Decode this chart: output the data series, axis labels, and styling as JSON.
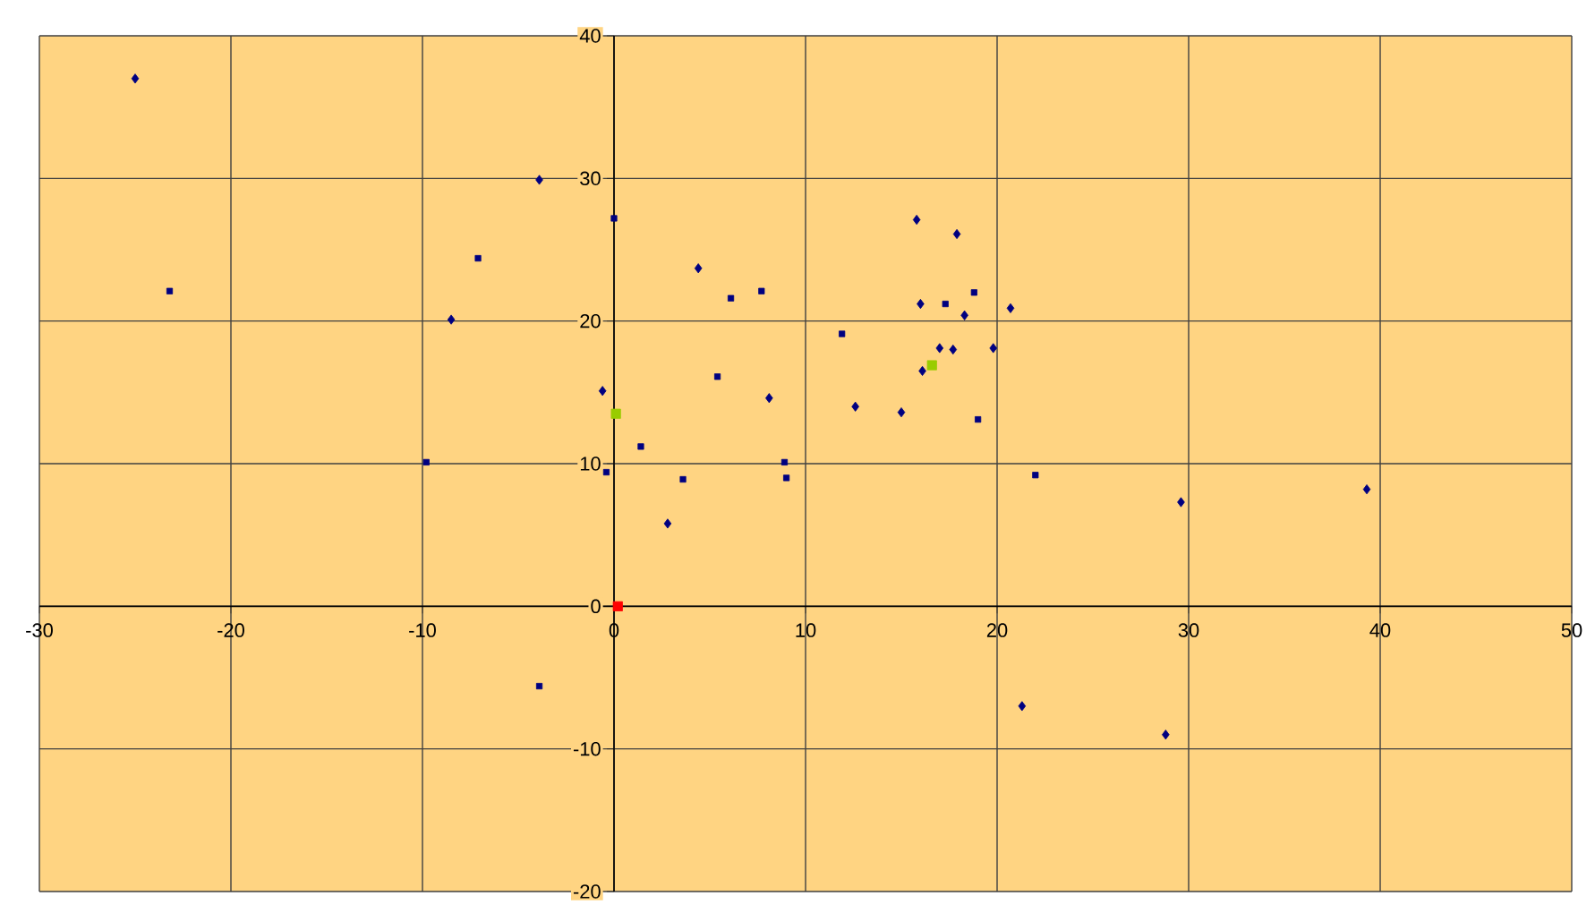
{
  "chart_data": {
    "type": "scatter",
    "xlim": [
      -30,
      50
    ],
    "ylim": [
      -20,
      40
    ],
    "xticks": [
      -30,
      -20,
      -10,
      0,
      10,
      20,
      30,
      40,
      50
    ],
    "yticks": [
      -20,
      -10,
      0,
      10,
      20,
      30,
      40
    ],
    "grid": true,
    "series": [
      {
        "color": "#000080",
        "marker": "diamond",
        "x": [
          -25.0,
          -3.9,
          -8.5,
          -0.6,
          4.4,
          8.1,
          2.8,
          12.6,
          15.0,
          15.8,
          17.9,
          16.0,
          18.3,
          20.7,
          17.0,
          17.7,
          16.1,
          19.8,
          29.6,
          39.3,
          21.3,
          28.8
        ],
        "values": [
          37.0,
          29.9,
          20.1,
          15.1,
          23.7,
          14.6,
          5.8,
          14.0,
          13.6,
          27.1,
          26.1,
          21.2,
          20.4,
          20.9,
          18.1,
          18.0,
          16.5,
          18.1,
          7.3,
          8.2,
          -7.0,
          -9.0
        ]
      },
      {
        "color": "#000080",
        "marker": "square",
        "x": [
          -23.2,
          -7.1,
          -9.8,
          0.0,
          -0.4,
          1.4,
          3.6,
          -3.9,
          6.1,
          7.7,
          5.4,
          8.9,
          9.0,
          11.9,
          17.3,
          18.8,
          19.0,
          22.0
        ],
        "values": [
          22.1,
          24.4,
          10.1,
          27.2,
          9.4,
          11.2,
          8.9,
          -5.6,
          21.6,
          22.1,
          16.1,
          10.1,
          9.0,
          19.1,
          21.2,
          22.0,
          13.1,
          9.2
        ]
      },
      {
        "color": "#99cc00",
        "marker": "square",
        "x": [
          0.1,
          16.6
        ],
        "values": [
          13.5,
          16.9
        ]
      },
      {
        "color": "#ff0000",
        "marker": "square",
        "x": [
          0.2
        ],
        "values": [
          0
        ]
      }
    ]
  }
}
